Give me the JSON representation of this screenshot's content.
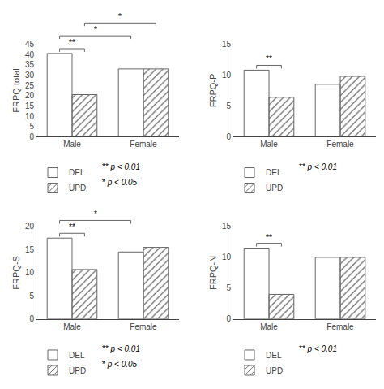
{
  "chart_data": [
    {
      "type": "bar",
      "categories": [
        "Male",
        "Female"
      ],
      "series": [
        {
          "name": "DEL",
          "color": "#ffffff",
          "values": [
            40.5,
            33.0
          ]
        },
        {
          "name": "UPD",
          "color": "#ffffff",
          "values": [
            20.5,
            33.0
          ]
        }
      ],
      "ylabel": "FRPQ total",
      "ylim": [
        0,
        45
      ],
      "yticks": [
        0,
        5,
        10,
        15,
        20,
        25,
        30,
        35,
        40,
        45
      ],
      "grid": false,
      "legend": "below",
      "annotations": [
        {
          "text": "**",
          "from": [
            "Male",
            "DEL"
          ],
          "to": [
            "Male",
            "UPD"
          ]
        },
        {
          "text": "*",
          "from": [
            "Male",
            "DEL"
          ],
          "to": [
            "Female",
            "DEL"
          ]
        },
        {
          "text": "*",
          "from": [
            "Male",
            "UPD"
          ],
          "to": [
            "Female",
            "UPD"
          ]
        },
        {
          "text": "** p < 0.01"
        },
        {
          "text": "* p < 0.05"
        }
      ]
    },
    {
      "type": "bar",
      "categories": [
        "Male",
        "Female"
      ],
      "series": [
        {
          "name": "DEL",
          "color": "#ffffff",
          "values": [
            10.8,
            8.5
          ]
        },
        {
          "name": "UPD",
          "color": "#ffffff",
          "values": [
            6.4,
            9.8
          ]
        }
      ],
      "ylabel": "FRPQ-P",
      "ylim": [
        0,
        15
      ],
      "yticks": [
        0,
        5,
        10,
        15
      ],
      "grid": false,
      "legend": "below",
      "annotations": [
        {
          "text": "**",
          "from": [
            "Male",
            "DEL"
          ],
          "to": [
            "Male",
            "UPD"
          ]
        },
        {
          "text": "** p < 0.01"
        }
      ]
    },
    {
      "type": "bar",
      "categories": [
        "Male",
        "Female"
      ],
      "series": [
        {
          "name": "DEL",
          "color": "#ffffff",
          "values": [
            17.5,
            14.5
          ]
        },
        {
          "name": "UPD",
          "color": "#ffffff",
          "values": [
            10.7,
            15.5
          ]
        }
      ],
      "ylabel": "FRPQ-S",
      "ylim": [
        0,
        20
      ],
      "yticks": [
        0,
        5,
        10,
        15,
        20
      ],
      "grid": false,
      "legend": "below",
      "annotations": [
        {
          "text": "**",
          "from": [
            "Male",
            "DEL"
          ],
          "to": [
            "Male",
            "UPD"
          ]
        },
        {
          "text": "*",
          "from": [
            "Male",
            "DEL"
          ],
          "to": [
            "Female",
            "DEL"
          ]
        },
        {
          "text": "** p < 0.01"
        },
        {
          "text": "* p < 0.05"
        }
      ]
    },
    {
      "type": "bar",
      "categories": [
        "Male",
        "Female"
      ],
      "series": [
        {
          "name": "DEL",
          "color": "#ffffff",
          "values": [
            11.5,
            10.0
          ]
        },
        {
          "name": "UPD",
          "color": "#ffffff",
          "values": [
            4.0,
            10.0
          ]
        }
      ],
      "ylabel": "FRPQ-N",
      "ylim": [
        0,
        15
      ],
      "yticks": [
        0,
        5,
        10,
        15
      ],
      "grid": false,
      "legend": "below",
      "annotations": [
        {
          "text": "**",
          "from": [
            "Male",
            "DEL"
          ],
          "to": [
            "Male",
            "UPD"
          ]
        },
        {
          "text": "** p < 0.01"
        }
      ]
    }
  ]
}
